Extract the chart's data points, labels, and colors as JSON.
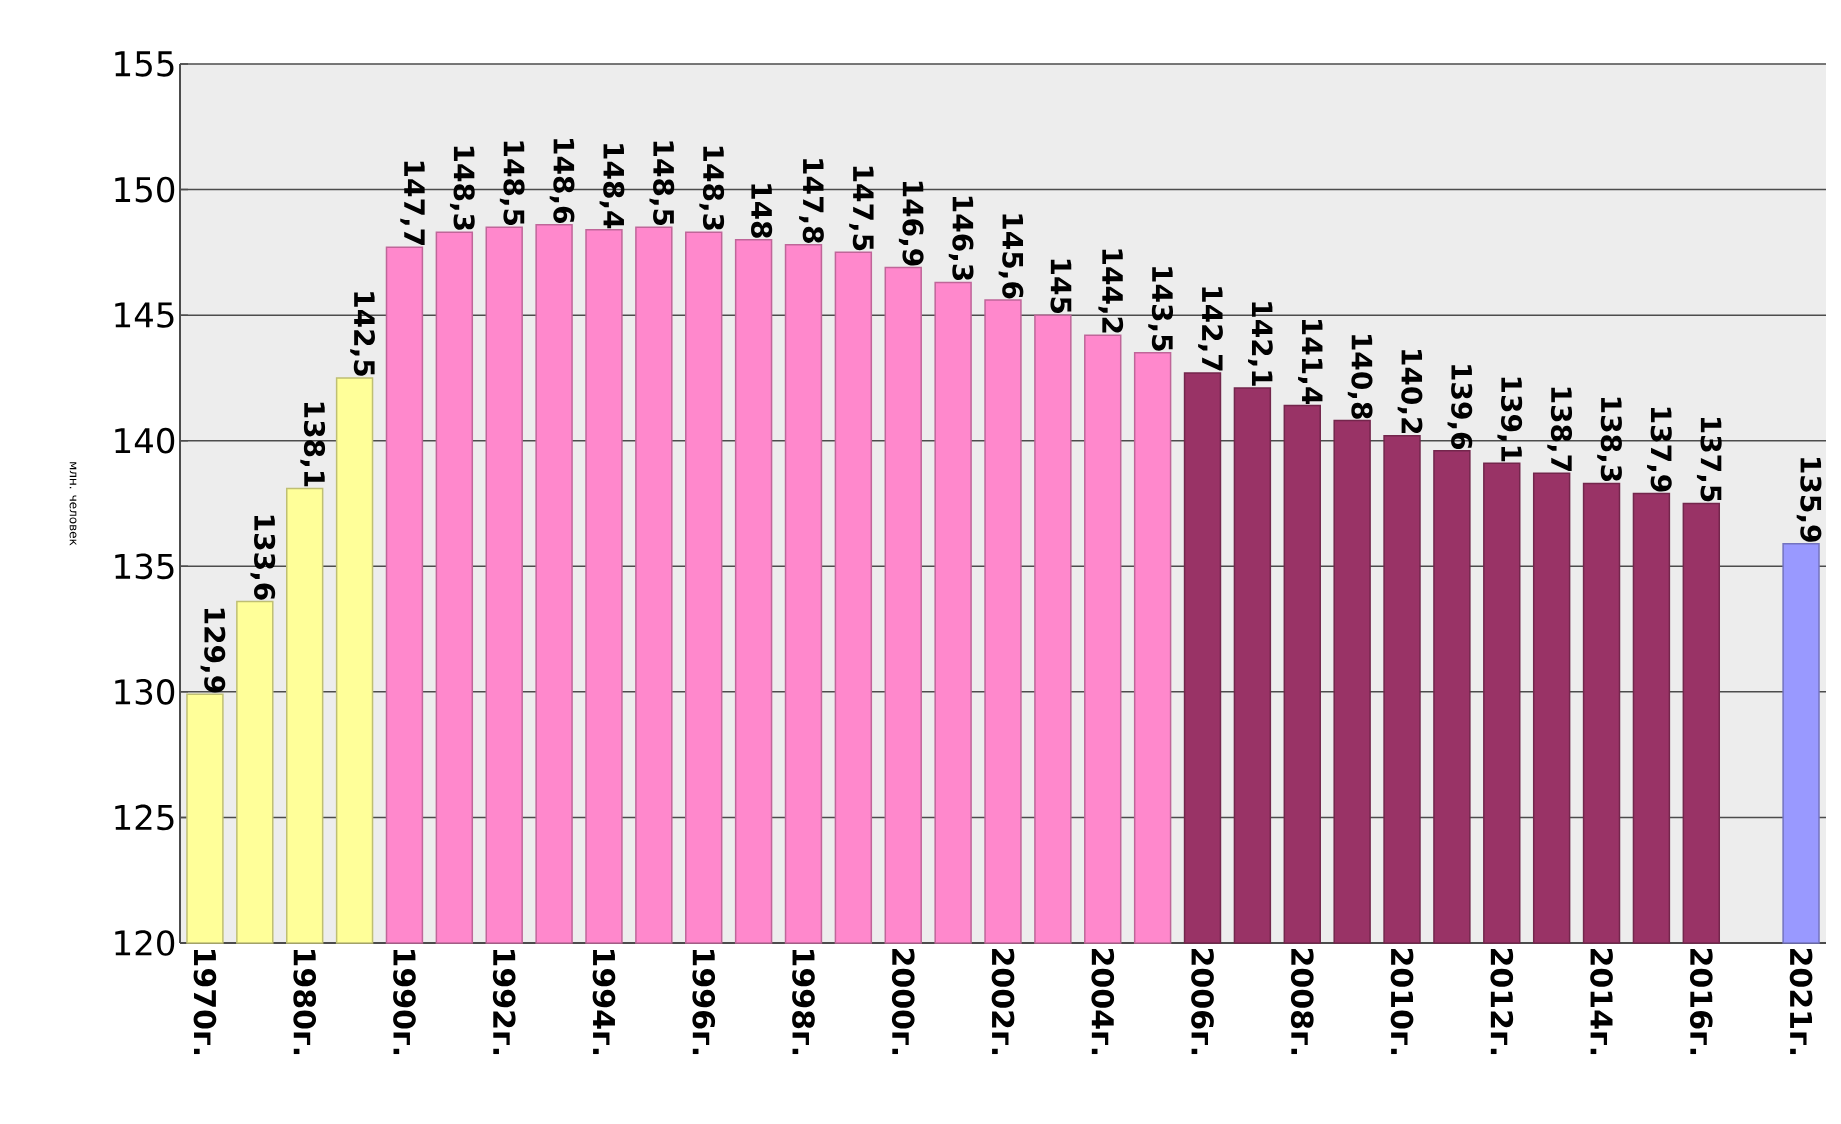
{
  "chart_data": {
    "type": "bar",
    "ylabel": "млн. человек",
    "categories": [
      "1970г.",
      null,
      "1980г.",
      null,
      "1990г.",
      null,
      "1992г.",
      null,
      "1994г.",
      null,
      "1996г.",
      null,
      "1998г.",
      null,
      "2000г.",
      null,
      "2002г.",
      null,
      "2004г.",
      null,
      "2006г.",
      null,
      "2008г.",
      null,
      "2010г.",
      null,
      "2012г.",
      null,
      "2014г.",
      null,
      "2016г.",
      null,
      "2021г."
    ],
    "values": [
      129.9,
      133.6,
      138.1,
      142.5,
      147.7,
      148.3,
      148.5,
      148.6,
      148.4,
      148.5,
      148.3,
      148,
      147.8,
      147.5,
      146.9,
      146.3,
      145.6,
      145,
      144.2,
      143.5,
      142.7,
      142.1,
      141.4,
      140.8,
      140.2,
      139.6,
      139.1,
      138.7,
      138.3,
      137.9,
      137.5,
      null,
      135.9
    ],
    "value_labels": [
      "129,9",
      "133,6",
      "138,1",
      "142,5",
      "147,7",
      "148,3",
      "148,5",
      "148,6",
      "148,4",
      "148,5",
      "148,3",
      "148",
      "147,8",
      "147,5",
      "146,9",
      "146,3",
      "145,6",
      "145",
      "144,2",
      "143,5",
      "142,7",
      "142,1",
      "141,4",
      "140,8",
      "140,2",
      "139,6",
      "139,1",
      "138,7",
      "138,3",
      "137,9",
      "137,5",
      null,
      "135,9"
    ],
    "colors": [
      "#ffff99",
      "#ffff99",
      "#ffff99",
      "#ffff99",
      "#ff88cc",
      "#ff88cc",
      "#ff88cc",
      "#ff88cc",
      "#ff88cc",
      "#ff88cc",
      "#ff88cc",
      "#ff88cc",
      "#ff88cc",
      "#ff88cc",
      "#ff88cc",
      "#ff88cc",
      "#ff88cc",
      "#ff88cc",
      "#ff88cc",
      "#ff88cc",
      "#993366",
      "#993366",
      "#993366",
      "#993366",
      "#993366",
      "#993366",
      "#993366",
      "#993366",
      "#993366",
      "#993366",
      "#993366",
      null,
      "#9999ff"
    ],
    "ylim": [
      120,
      155
    ],
    "yticks": [
      120,
      125,
      130,
      135,
      140,
      145,
      150,
      155
    ],
    "grid": "y"
  }
}
